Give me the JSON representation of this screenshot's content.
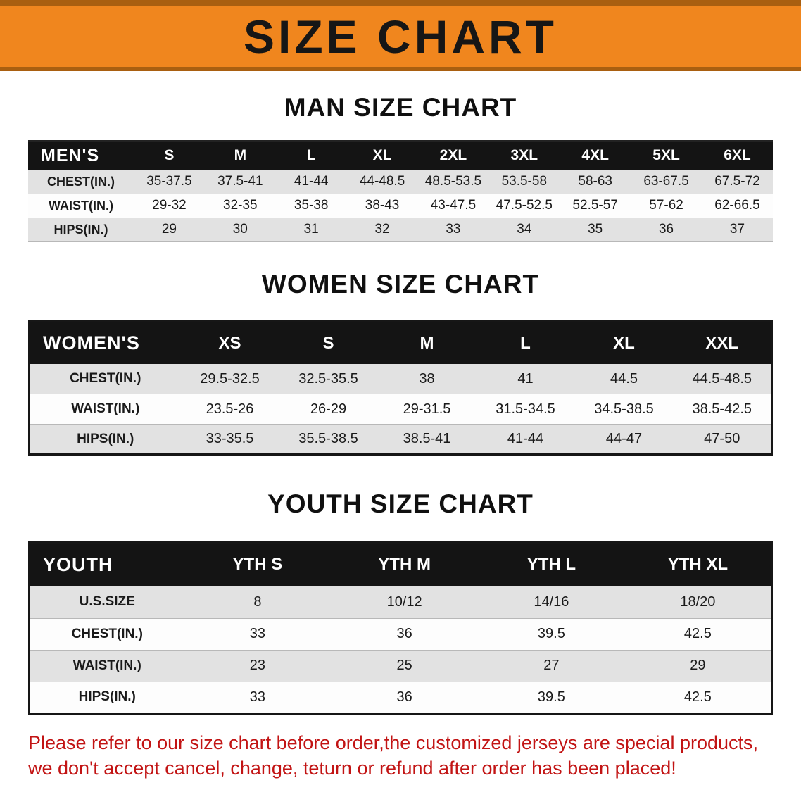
{
  "banner": {
    "title": "SIZE CHART",
    "bg_color": "#f0861e",
    "edge_color": "#a95f10"
  },
  "chart_data": [
    {
      "type": "table",
      "title": "MAN SIZE CHART",
      "columns": [
        "MEN'S",
        "S",
        "M",
        "L",
        "XL",
        "2XL",
        "3XL",
        "4XL",
        "5XL",
        "6XL"
      ],
      "rows": [
        [
          "CHEST(IN.)",
          "35-37.5",
          "37.5-41",
          "41-44",
          "44-48.5",
          "48.5-53.5",
          "53.5-58",
          "58-63",
          "63-67.5",
          "67.5-72"
        ],
        [
          "WAIST(IN.)",
          "29-32",
          "32-35",
          "35-38",
          "38-43",
          "43-47.5",
          "47.5-52.5",
          "52.5-57",
          "57-62",
          "62-66.5"
        ],
        [
          "HIPS(IN.)",
          "29",
          "30",
          "31",
          "32",
          "33",
          "34",
          "35",
          "36",
          "37"
        ]
      ]
    },
    {
      "type": "table",
      "title": "WOMEN SIZE CHART",
      "columns": [
        "WOMEN'S",
        "XS",
        "S",
        "M",
        "L",
        "XL",
        "XXL"
      ],
      "rows": [
        [
          "CHEST(IN.)",
          "29.5-32.5",
          "32.5-35.5",
          "38",
          "41",
          "44.5",
          "44.5-48.5"
        ],
        [
          "WAIST(IN.)",
          "23.5-26",
          "26-29",
          "29-31.5",
          "31.5-34.5",
          "34.5-38.5",
          "38.5-42.5"
        ],
        [
          "HIPS(IN.)",
          "33-35.5",
          "35.5-38.5",
          "38.5-41",
          "41-44",
          "44-47",
          "47-50"
        ]
      ]
    },
    {
      "type": "table",
      "title": "YOUTH SIZE CHART",
      "columns": [
        "YOUTH",
        "YTH S",
        "YTH M",
        "YTH L",
        "YTH XL"
      ],
      "rows": [
        [
          "U.S.SIZE",
          "8",
          "10/12",
          "14/16",
          "18/20"
        ],
        [
          "CHEST(IN.)",
          "33",
          "36",
          "39.5",
          "42.5"
        ],
        [
          "WAIST(IN.)",
          "23",
          "25",
          "27",
          "29"
        ],
        [
          "HIPS(IN.)",
          "33",
          "36",
          "39.5",
          "42.5"
        ]
      ]
    }
  ],
  "footer": {
    "color": "#c21414",
    "lines": [
      "Please refer to our size chart before order,the customized jerseys are special products,",
      "we don't accept cancel, change, teturn or refund after order has been placed!"
    ]
  }
}
